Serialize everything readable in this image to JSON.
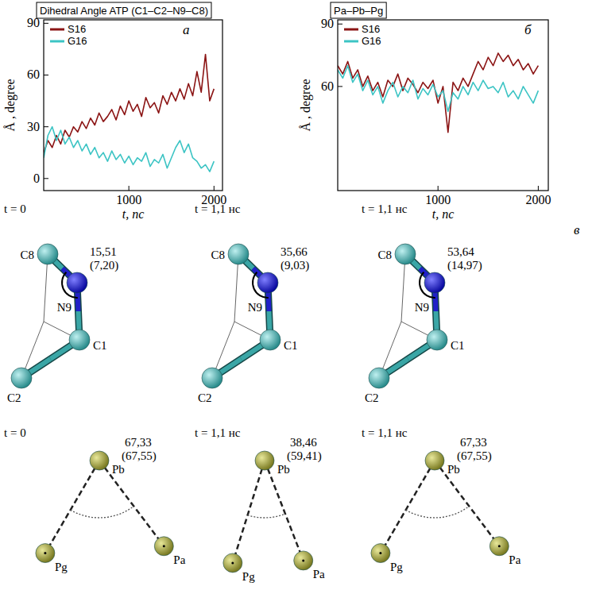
{
  "chart_data": [
    {
      "type": "line",
      "title": "Dihedral Angle ATP (C1–C2–N9–C8)",
      "panel_label": "а",
      "x_label": "t, пс",
      "y_label": "Å , degree",
      "x": [
        0,
        50,
        100,
        150,
        200,
        250,
        300,
        350,
        400,
        450,
        500,
        550,
        600,
        650,
        700,
        750,
        800,
        850,
        900,
        950,
        1000,
        1050,
        1100,
        1150,
        1200,
        1250,
        1300,
        1350,
        1400,
        1450,
        1500,
        1550,
        1600,
        1650,
        1700,
        1750,
        1800,
        1850,
        1900,
        1950,
        2000
      ],
      "series": [
        {
          "name": "S16",
          "color": "#8b1414",
          "values": [
            15,
            22,
            18,
            25,
            20,
            28,
            24,
            30,
            27,
            33,
            29,
            35,
            31,
            38,
            33,
            36,
            40,
            34,
            42,
            37,
            45,
            39,
            43,
            36,
            47,
            41,
            44,
            38,
            48,
            43,
            50,
            45,
            52,
            46,
            55,
            48,
            62,
            50,
            72,
            45,
            52
          ]
        },
        {
          "name": "G16",
          "color": "#3cc4c4",
          "values": [
            12,
            25,
            30,
            22,
            28,
            20,
            24,
            18,
            22,
            16,
            20,
            14,
            18,
            12,
            15,
            10,
            16,
            11,
            14,
            9,
            13,
            8,
            12,
            10,
            15,
            7,
            11,
            9,
            14,
            6,
            12,
            18,
            22,
            15,
            20,
            12,
            10,
            6,
            8,
            4,
            10
          ]
        }
      ],
      "xlim": [
        0,
        2100
      ],
      "xticks": [
        1000,
        2000
      ],
      "ylim": [
        -7,
        92
      ],
      "yticks": [
        0,
        30,
        60,
        90
      ],
      "legend": "top-left",
      "grid": false
    },
    {
      "type": "line",
      "title": "Pa–Pb–Pg",
      "panel_label": "б",
      "x_label": "t, пс",
      "y_label": "Å , degree",
      "x": [
        0,
        50,
        100,
        150,
        200,
        250,
        300,
        350,
        400,
        450,
        500,
        550,
        600,
        650,
        700,
        750,
        800,
        850,
        900,
        950,
        1000,
        1050,
        1100,
        1150,
        1200,
        1250,
        1300,
        1350,
        1400,
        1450,
        1500,
        1550,
        1600,
        1650,
        1700,
        1750,
        1800,
        1850,
        1900,
        1950,
        2000
      ],
      "series": [
        {
          "name": "S16",
          "color": "#8b1414",
          "values": [
            70,
            66,
            72,
            64,
            68,
            60,
            65,
            58,
            62,
            55,
            63,
            60,
            66,
            58,
            64,
            61,
            57,
            62,
            59,
            63,
            52,
            60,
            38,
            62,
            58,
            64,
            60,
            66,
            72,
            68,
            74,
            70,
            76,
            72,
            75,
            70,
            73,
            68,
            71,
            66,
            70
          ]
        },
        {
          "name": "G16",
          "color": "#3cc4c4",
          "values": [
            68,
            64,
            70,
            62,
            66,
            58,
            63,
            56,
            60,
            52,
            58,
            62,
            55,
            60,
            57,
            63,
            54,
            59,
            56,
            61,
            55,
            58,
            48,
            57,
            54,
            60,
            56,
            62,
            58,
            63,
            59,
            60,
            57,
            62,
            55,
            58,
            54,
            60,
            56,
            52,
            58
          ]
        }
      ],
      "xlim": [
        0,
        2100
      ],
      "xticks": [
        1000,
        2000
      ],
      "ylim": [
        10,
        92
      ],
      "yticks": [
        60,
        90
      ],
      "legend": "top-left",
      "grid": false
    }
  ],
  "diagram": {
    "panel_label": "в",
    "dihedral": [
      {
        "time": "t = 0",
        "atoms": [
          "C8",
          "N9",
          "C1",
          "C2"
        ],
        "angle": "15,51",
        "angle_alt": "(7,20)"
      },
      {
        "time": "t = 1,1 нс",
        "atoms": [
          "C8",
          "N9",
          "C1",
          "C2"
        ],
        "angle": "35,66",
        "angle_alt": "(9,03)"
      },
      {
        "time": "t = 1,1 нс",
        "atoms": [
          "C8",
          "N9",
          "C1",
          "C2"
        ],
        "angle": "53,64",
        "angle_alt": "(14,97)"
      }
    ],
    "triangle": [
      {
        "time": "t = 0",
        "atoms": [
          "Pb",
          "Pg",
          "Pa"
        ],
        "angle": "67,33",
        "angle_alt": "(67,55)"
      },
      {
        "time": "t = 1,1 нс",
        "atoms": [
          "Pb",
          "Pg",
          "Pa"
        ],
        "angle": "38,46",
        "angle_alt": "(59,41)"
      },
      {
        "time": "t = 1,1 нс",
        "atoms": [
          "Pb",
          "Pg",
          "Pa"
        ],
        "angle": "67,33",
        "angle_alt": "(67,55)"
      }
    ]
  }
}
